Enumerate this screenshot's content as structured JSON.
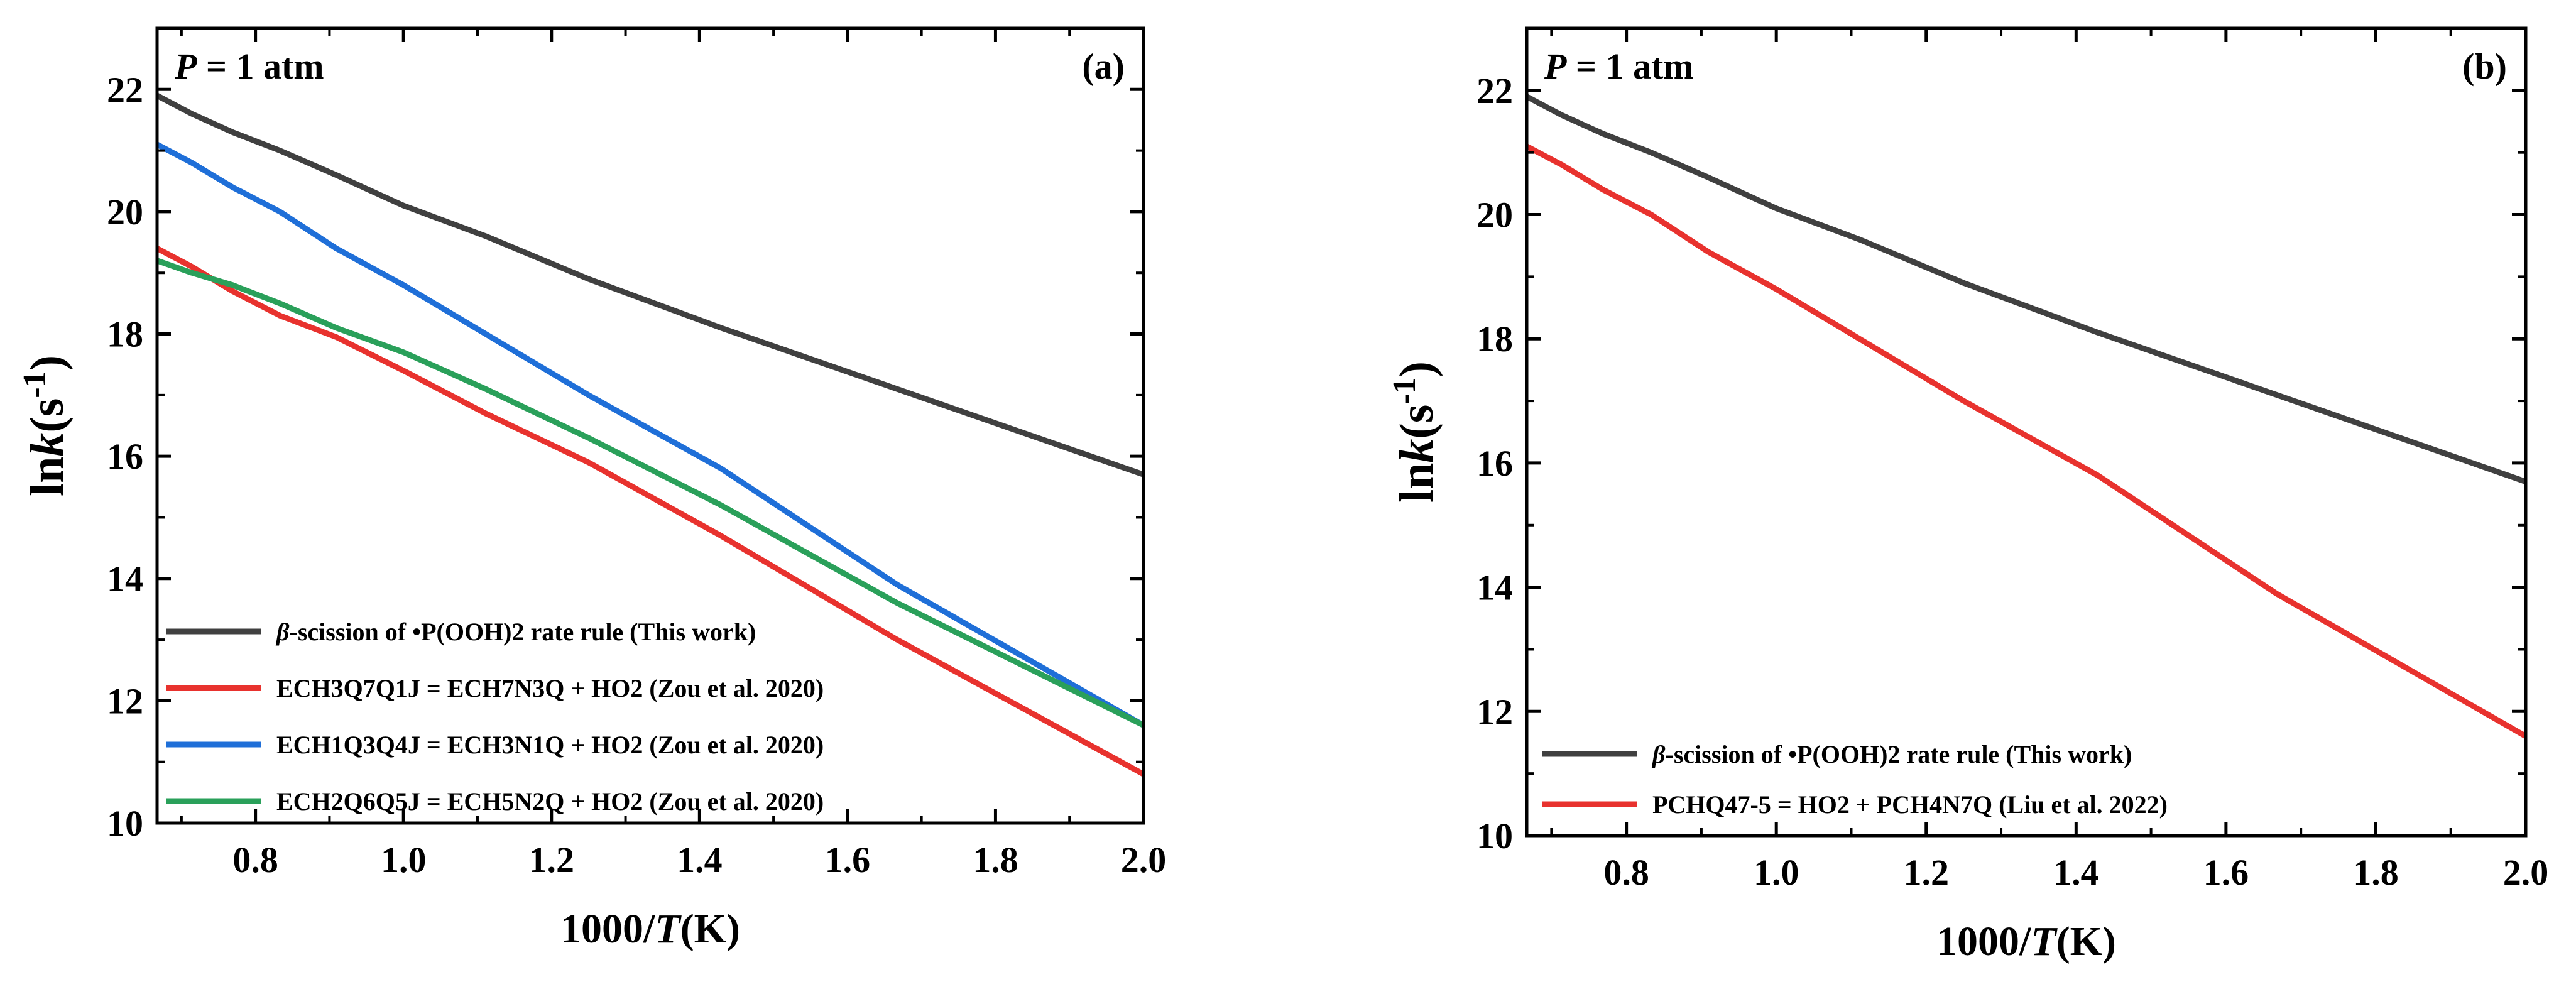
{
  "chart_data": [
    {
      "type": "line",
      "panel_label": "(a)",
      "annotation": {
        "italic": "P",
        "text": " = 1 atm"
      },
      "xlabel": {
        "prefix": "1000/",
        "italic": "T",
        "suffix": "(K)"
      },
      "ylabel": {
        "prefix": "ln",
        "italic": "k",
        "unit": "(s",
        "sup": "-1",
        "close": ")"
      },
      "xlim": [
        0.667,
        2.0
      ],
      "ylim": [
        10,
        23
      ],
      "xticks": [
        "0.8",
        "1.0",
        "1.2",
        "1.4",
        "1.6",
        "1.8",
        "2.0"
      ],
      "yticks": [
        "10",
        "12",
        "14",
        "16",
        "18",
        "20",
        "22"
      ],
      "legend_position": "lower-left",
      "series": [
        {
          "name": "β-scission of •P(OOH)2 rate rule (This work)",
          "legend_italic": "β",
          "legend_rest": "-scission of •P(OOH)2 rate rule (This work)",
          "color": "#404040",
          "x": [
            0.667,
            0.714,
            0.769,
            0.833,
            0.909,
            1.0,
            1.111,
            1.25,
            1.429,
            1.667,
            2.0
          ],
          "y": [
            21.9,
            21.6,
            21.3,
            21.0,
            20.6,
            20.1,
            19.6,
            18.9,
            18.1,
            17.1,
            15.7
          ]
        },
        {
          "name": "ECH3Q7Q1J = ECH7N3Q + HO2 (Zou et al. 2020)",
          "color": "#e8322e",
          "x": [
            0.667,
            0.714,
            0.769,
            0.833,
            0.909,
            1.0,
            1.111,
            1.25,
            1.429,
            1.667,
            2.0
          ],
          "y": [
            19.4,
            19.1,
            18.7,
            18.3,
            17.95,
            17.4,
            16.7,
            15.9,
            14.7,
            13.0,
            10.8
          ]
        },
        {
          "name": "ECH1Q3Q4J = ECH3N1Q + HO2 (Zou et al. 2020)",
          "color": "#1f6fd8",
          "x": [
            0.667,
            0.714,
            0.769,
            0.833,
            0.909,
            1.0,
            1.111,
            1.25,
            1.429,
            1.667,
            2.0
          ],
          "y": [
            21.1,
            20.8,
            20.4,
            20.0,
            19.4,
            18.8,
            18.0,
            17.0,
            15.8,
            13.9,
            11.6
          ]
        },
        {
          "name": "ECH2Q6Q5J = ECH5N2Q + HO2 (Zou et al. 2020)",
          "color": "#2aa05a",
          "x": [
            0.667,
            0.714,
            0.769,
            0.833,
            0.909,
            1.0,
            1.111,
            1.25,
            1.429,
            1.667,
            2.0
          ],
          "y": [
            19.2,
            19.0,
            18.8,
            18.5,
            18.1,
            17.7,
            17.1,
            16.3,
            15.2,
            13.6,
            11.6
          ]
        }
      ]
    },
    {
      "type": "line",
      "panel_label": "(b)",
      "annotation": {
        "italic": "P",
        "text": " = 1 atm"
      },
      "xlabel": {
        "prefix": "1000/",
        "italic": "T",
        "suffix": "(K)"
      },
      "ylabel": {
        "prefix": "ln",
        "italic": "k",
        "unit": "(s",
        "sup": "-1",
        "close": ")"
      },
      "xlim": [
        0.667,
        2.0
      ],
      "ylim": [
        10,
        23
      ],
      "xticks": [
        "0.8",
        "1.0",
        "1.2",
        "1.4",
        "1.6",
        "1.8",
        "2.0"
      ],
      "yticks": [
        "10",
        "12",
        "14",
        "16",
        "18",
        "20",
        "22"
      ],
      "legend_position": "lower-left",
      "series": [
        {
          "name": "β-scission of •P(OOH)2 rate rule (This work)",
          "legend_italic": "β",
          "legend_rest": "-scission of •P(OOH)2 rate rule (This work)",
          "color": "#404040",
          "x": [
            0.667,
            0.714,
            0.769,
            0.833,
            0.909,
            1.0,
            1.111,
            1.25,
            1.429,
            1.667,
            2.0
          ],
          "y": [
            21.9,
            21.6,
            21.3,
            21.0,
            20.6,
            20.1,
            19.6,
            18.9,
            18.1,
            17.1,
            15.7
          ]
        },
        {
          "name": "PCHQ47-5 = HO2 + PCH4N7Q (Liu et al. 2022)",
          "color": "#e8322e",
          "x": [
            0.667,
            0.714,
            0.769,
            0.833,
            0.909,
            1.0,
            1.111,
            1.25,
            1.429,
            1.667,
            2.0
          ],
          "y": [
            21.1,
            20.8,
            20.4,
            20.0,
            19.4,
            18.8,
            18.0,
            17.0,
            15.8,
            13.9,
            11.6
          ]
        }
      ]
    }
  ]
}
